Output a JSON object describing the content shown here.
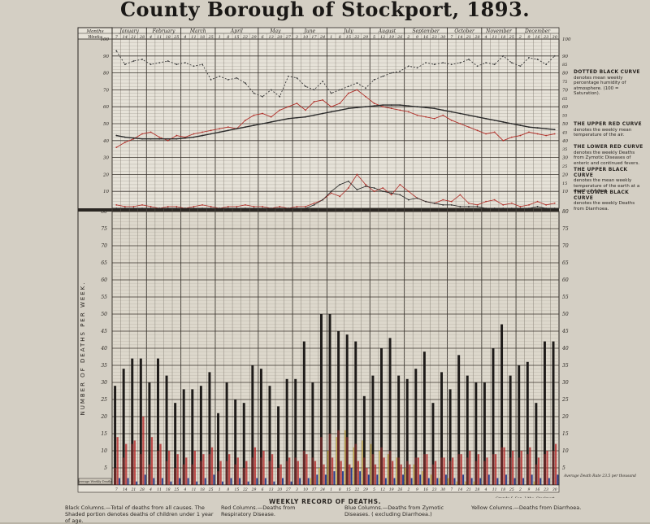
{
  "title": "County Borough of Stockport, 1893.",
  "chart_header": {
    "months_label": "Months",
    "weeks_label": "Weeks",
    "months": [
      "January",
      "February",
      "March",
      "April",
      "May",
      "June",
      "July",
      "August",
      "September",
      "October",
      "November",
      "December"
    ],
    "week_days": [
      "7",
      "14",
      "21",
      "28",
      "4",
      "11",
      "18",
      "25",
      "4",
      "11",
      "18",
      "25",
      "1",
      "8",
      "15",
      "22",
      "29",
      "6",
      "13",
      "20",
      "27",
      "3",
      "10",
      "17",
      "24",
      "1",
      "8",
      "15",
      "22",
      "29",
      "5",
      "12",
      "19",
      "26",
      "2",
      "9",
      "16",
      "23",
      "30",
      "7",
      "14",
      "21",
      "28",
      "4",
      "11",
      "18",
      "25",
      "2",
      "9",
      "16",
      "23",
      "30"
    ]
  },
  "axes": {
    "upper_left_ticks": [
      "100",
      "90",
      "80",
      "70",
      "60",
      "50",
      "40",
      "30",
      "20",
      "10"
    ],
    "upper_right_ticks": [
      "100",
      "90",
      "80",
      "70",
      "60",
      "50",
      "40",
      "30",
      "20",
      "10"
    ],
    "upper_right_minor_ticks": [
      "85",
      "75",
      "65",
      "55",
      "45",
      "35",
      "25",
      "15"
    ],
    "lower_ticks": [
      "80",
      "75",
      "70",
      "65",
      "60",
      "55",
      "50",
      "45",
      "40",
      "35",
      "30",
      "25",
      "20",
      "15",
      "10",
      "5"
    ],
    "lower_axis_label": "NUMBER OF DEATHS PER WEEK."
  },
  "legend_notes": [
    {
      "heading": "DOTTED BLACK CURVE",
      "text": "denotes mean weekly percentage humidity of atmosphere. (100 = Saturation)."
    },
    {
      "heading": "THE UPPER RED CURVE",
      "text": "denotes the weekly mean temperature of the air."
    },
    {
      "heading": "THE LOWER RED CURVE",
      "text": "denotes the weekly Deaths from Zymotic Diseases of enteric and continued fevers."
    },
    {
      "heading": "THE UPPER BLACK CURVE",
      "text": "denotes the mean weekly temperature of the earth at a depth of 4 feet."
    },
    {
      "heading": "THE LOWER BLACK CURVE",
      "text": "denotes the weekly Deaths from Diarrhoea."
    }
  ],
  "bottom_left_box": "Average Weekly Deaths",
  "bottom_right_note": "Average Death Rate 23.5 per thousand",
  "printer_note": "Grundy & Son, Litho, Stockport.",
  "footer": {
    "record_title": "WEEKLY RECORD OF DEATHS.",
    "black": "Black Columns.—Total of deaths from all causes. The Shaded portion denotes deaths of children under 1 year of age.",
    "red": "Red Columns.—Deaths from Respiratory Disease.",
    "blue": "Blue Columns.—Deaths from Zymotic Diseases. ( excluding Diarrhoea.)",
    "yellow": "Yellow Columns.—Deaths from Diarrhoea."
  },
  "chart_data": [
    {
      "type": "line",
      "x_label": "Weeks",
      "x": [
        1,
        2,
        3,
        4,
        5,
        6,
        7,
        8,
        9,
        10,
        11,
        12,
        13,
        14,
        15,
        16,
        17,
        18,
        19,
        20,
        21,
        22,
        23,
        24,
        25,
        26,
        27,
        28,
        29,
        30,
        31,
        32,
        33,
        34,
        35,
        36,
        37,
        38,
        39,
        40,
        41,
        42,
        43,
        44,
        45,
        46,
        47,
        48,
        49,
        50,
        51,
        52
      ],
      "ylim": [
        0,
        100
      ],
      "series": [
        {
          "name": "humidity",
          "color": "#3a3a3a",
          "values": [
            93,
            85,
            87,
            88,
            85,
            86,
            87,
            85,
            86,
            84,
            85,
            76,
            78,
            76,
            77,
            74,
            68,
            66,
            70,
            66,
            78,
            77,
            72,
            70,
            75,
            68,
            70,
            72,
            74,
            71,
            76,
            78,
            80,
            81,
            84,
            83,
            86,
            85,
            86,
            85,
            86,
            88,
            84,
            86,
            85,
            90,
            86,
            84,
            89,
            88,
            85,
            90
          ]
        },
        {
          "name": "air temperature",
          "color": "#b0302a",
          "values": [
            36,
            39,
            41,
            44,
            45,
            42,
            40,
            43,
            42,
            44,
            45,
            46,
            47,
            48,
            47,
            52,
            55,
            56,
            54,
            58,
            60,
            62,
            58,
            63,
            64,
            60,
            62,
            68,
            70,
            66,
            62,
            60,
            59,
            58,
            57,
            55,
            54,
            53,
            55,
            52,
            50,
            48,
            46,
            44,
            45,
            40,
            42,
            43,
            45,
            44,
            43,
            44
          ]
        },
        {
          "name": "earth temperature",
          "color": "#2a2a2a",
          "values": [
            43,
            42,
            41.5,
            41,
            41,
            41,
            41,
            41,
            41.5,
            42,
            43,
            44,
            45,
            46,
            47,
            48,
            49,
            50,
            51,
            52,
            53,
            53.5,
            54,
            55,
            56,
            57,
            58,
            59,
            59.5,
            60,
            60.5,
            61,
            61,
            61,
            60.5,
            60,
            59.5,
            59,
            58,
            57,
            56,
            55,
            54,
            53,
            52,
            51,
            50,
            49,
            48,
            47.5,
            47,
            46.5
          ]
        },
        {
          "name": "zymotic fevers",
          "color": "#b0302a",
          "values": [
            2,
            1,
            1,
            2,
            1,
            0,
            1,
            1,
            0,
            1,
            2,
            1,
            0,
            1,
            1,
            2,
            1,
            1,
            0,
            1,
            0,
            1,
            1,
            3,
            5,
            9,
            7,
            12,
            20,
            14,
            10,
            12,
            8,
            14,
            10,
            6,
            4,
            3,
            5,
            4,
            8,
            3,
            2,
            4,
            5,
            2,
            3,
            1,
            2,
            4,
            2,
            3
          ]
        },
        {
          "name": "diarrhoea",
          "color": "#2a2a2a",
          "values": [
            0,
            0,
            0,
            0,
            0,
            0,
            0,
            0,
            0,
            0,
            0,
            0,
            0,
            0,
            0,
            0,
            0,
            0,
            0,
            0,
            0,
            0,
            0,
            2,
            5,
            10,
            14,
            16,
            11,
            13,
            12,
            10,
            9,
            8,
            5,
            6,
            4,
            3,
            2,
            2,
            1,
            1,
            1,
            0,
            0,
            0,
            0,
            0,
            0,
            1,
            0,
            0
          ]
        }
      ]
    },
    {
      "type": "bar",
      "x_label": "Weeks",
      "ylim": [
        0,
        80
      ],
      "categories": [
        1,
        2,
        3,
        4,
        5,
        6,
        7,
        8,
        9,
        10,
        11,
        12,
        13,
        14,
        15,
        16,
        17,
        18,
        19,
        20,
        21,
        22,
        23,
        24,
        25,
        26,
        27,
        28,
        29,
        30,
        31,
        32,
        33,
        34,
        35,
        36,
        37,
        38,
        39,
        40,
        41,
        42,
        43,
        44,
        45,
        46,
        47,
        48,
        49,
        50,
        51,
        52
      ],
      "series": [
        {
          "name": "Total deaths from all causes",
          "color": "#1e1b19",
          "values": [
            29,
            34,
            37,
            37,
            30,
            37,
            32,
            24,
            28,
            28,
            29,
            33,
            21,
            30,
            25,
            24,
            35,
            34,
            29,
            23,
            31,
            31,
            42,
            30,
            50,
            50,
            45,
            44,
            42,
            26,
            32,
            40,
            43,
            32,
            31,
            34,
            39,
            24,
            33,
            28,
            38,
            32,
            30,
            30,
            40,
            47,
            32,
            35,
            36,
            24,
            42,
            42
          ]
        },
        {
          "name": "Deaths of children under 1 year",
          "color": "#6e2a2a",
          "values": [
            5,
            8,
            12,
            9,
            6,
            10,
            7,
            5,
            6,
            6,
            7,
            9,
            4,
            7,
            6,
            5,
            8,
            8,
            7,
            5,
            7,
            8,
            10,
            8,
            14,
            15,
            16,
            14,
            12,
            8,
            9,
            11,
            10,
            8,
            7,
            8,
            9,
            6,
            8,
            7,
            9,
            8,
            7,
            7,
            9,
            11,
            8,
            8,
            9,
            6,
            9,
            10
          ]
        },
        {
          "name": "Respiratory Disease",
          "color": "#b62a2a",
          "values": [
            14,
            12,
            13,
            20,
            14,
            12,
            10,
            9,
            8,
            10,
            9,
            11,
            7,
            9,
            8,
            7,
            11,
            10,
            9,
            6,
            8,
            7,
            9,
            7,
            6,
            8,
            7,
            6,
            7,
            5,
            6,
            8,
            7,
            6,
            6,
            8,
            9,
            7,
            8,
            8,
            9,
            10,
            9,
            8,
            9,
            11,
            10,
            10,
            11,
            8,
            10,
            12
          ]
        },
        {
          "name": "Zymotic Diseases",
          "color": "#2a3e8a",
          "values": [
            2,
            2,
            1,
            3,
            2,
            2,
            1,
            2,
            2,
            1,
            2,
            3,
            1,
            2,
            2,
            1,
            2,
            2,
            1,
            2,
            1,
            2,
            2,
            3,
            3,
            4,
            4,
            5,
            4,
            3,
            3,
            2,
            2,
            3,
            2,
            3,
            2,
            2,
            3,
            2,
            3,
            2,
            2,
            3,
            2,
            3,
            2,
            2,
            3,
            2,
            2,
            3
          ]
        },
        {
          "name": "Diarrhoea",
          "color": "#c8a837",
          "values": [
            0,
            0,
            0,
            0,
            0,
            0,
            0,
            0,
            0,
            0,
            0,
            0,
            0,
            0,
            0,
            0,
            0,
            0,
            0,
            0,
            0,
            0,
            0,
            2,
            5,
            10,
            14,
            16,
            11,
            13,
            12,
            10,
            9,
            8,
            5,
            6,
            4,
            3,
            2,
            2,
            1,
            1,
            1,
            0,
            0,
            0,
            0,
            0,
            0,
            1,
            0,
            0
          ]
        }
      ]
    }
  ]
}
